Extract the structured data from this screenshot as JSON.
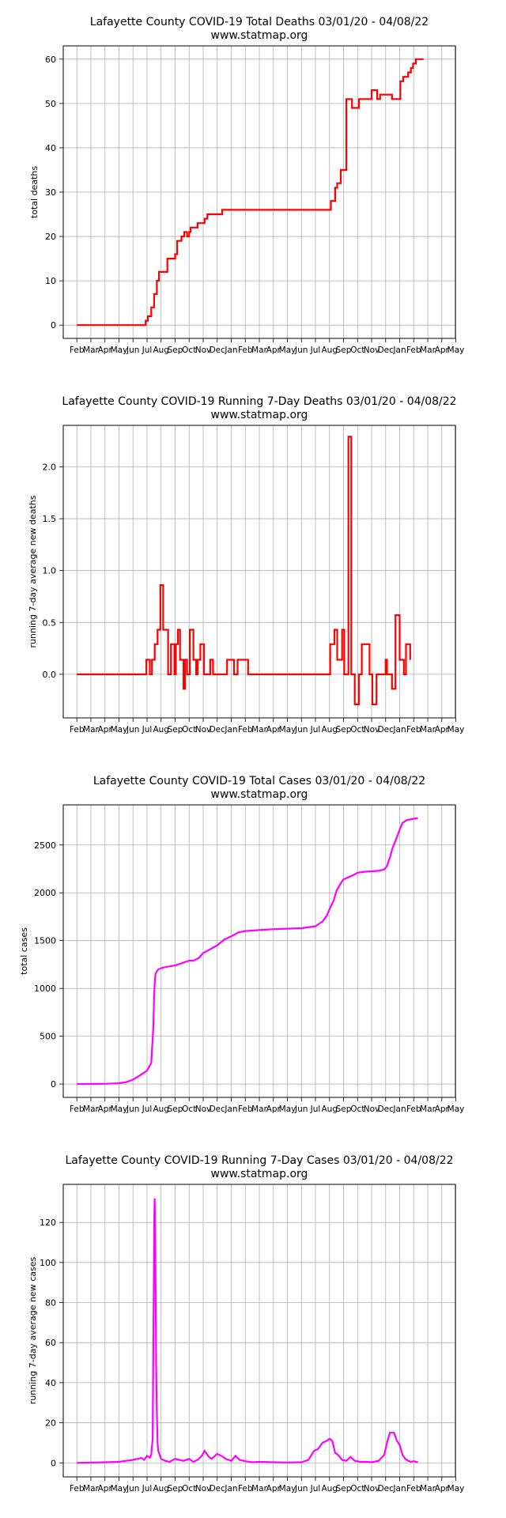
{
  "chart_data": [
    {
      "type": "line",
      "title": "Lafayette County COVID-19 Total Deaths 03/01/20 - 04/08/22",
      "subtitle": "www.statmap.org",
      "xlabel": "",
      "ylabel": "total deaths",
      "xlim": [
        -0.97,
        26.97
      ],
      "ylim": [
        -3,
        63
      ],
      "yticks": [
        0,
        10,
        20,
        30,
        40,
        50,
        60
      ],
      "xtick_labels": [
        "Feb",
        "Mar",
        "Apr",
        "May",
        "Jun",
        "Jul",
        "Aug",
        "Sep",
        "Oct",
        "Nov",
        "Dec",
        "Jan",
        "Feb",
        "Mar",
        "Apr",
        "May",
        "Jun",
        "Jul",
        "Aug",
        "Sep",
        "Oct",
        "Nov",
        "Dec",
        "Jan",
        "Feb",
        "Mar",
        "Apr",
        "May"
      ],
      "grid": true,
      "line_color": "#ff0000",
      "step": true,
      "series": [
        {
          "x": [
            0,
            4.9,
            5.05,
            5.3,
            5.5,
            5.7,
            5.85,
            6.1,
            6.45,
            6.8,
            7.0,
            7.15,
            7.35,
            7.45,
            7.65,
            7.85,
            8.0,
            8.1,
            8.45,
            8.6,
            9.1,
            9.3,
            9.5,
            10.05,
            10.35,
            11.3,
            11.5,
            12.1,
            12.3,
            13.0,
            13.1,
            18.1,
            18.4,
            18.55,
            18.7,
            18.8,
            19.2,
            19.6,
            20.1,
            20.5,
            21.0,
            21.4,
            21.6,
            22.3,
            22.45,
            23.05,
            23.25,
            23.6,
            23.8,
            23.95,
            24.15,
            24.35,
            24.5,
            24.7
          ],
          "y": [
            0,
            1,
            2,
            4,
            7,
            10,
            12,
            12,
            15,
            15,
            16,
            19,
            19,
            20,
            21,
            20,
            21,
            22,
            22,
            23,
            24,
            25,
            25,
            25,
            26,
            26,
            26,
            26,
            26,
            26,
            26,
            28,
            31,
            32,
            32,
            35,
            51,
            49,
            51,
            51,
            53,
            51,
            52,
            52,
            51,
            55,
            56,
            57,
            58,
            59,
            60,
            60,
            60,
            60
          ]
        }
      ]
    },
    {
      "type": "line",
      "title": "Lafayette County COVID-19 Running 7-Day Deaths 03/01/20 - 04/08/22",
      "subtitle": "www.statmap.org",
      "xlabel": "",
      "ylabel": "running 7-day average new deaths",
      "xlim": [
        -0.97,
        26.97
      ],
      "ylim": [
        -0.42,
        2.4
      ],
      "yticks": [
        0.0,
        0.5,
        1.0,
        1.5,
        2.0
      ],
      "ytick_labels": [
        "0.0",
        "0.5",
        "1.0",
        "1.5",
        "2.0"
      ],
      "xtick_labels": [
        "Feb",
        "Mar",
        "Apr",
        "May",
        "Jun",
        "Jul",
        "Aug",
        "Sep",
        "Oct",
        "Nov",
        "Dec",
        "Jan",
        "Feb",
        "Mar",
        "Apr",
        "May",
        "Jun",
        "Jul",
        "Aug",
        "Sep",
        "Oct",
        "Nov",
        "Dec",
        "Jan",
        "Feb",
        "Mar",
        "Apr",
        "May"
      ],
      "grid": true,
      "line_color": "#ff0000",
      "step": true,
      "series": [
        {
          "x": [
            0,
            4.95,
            5.2,
            5.35,
            5.55,
            5.75,
            5.95,
            6.15,
            6.5,
            6.7,
            6.95,
            7.05,
            7.2,
            7.35,
            7.6,
            7.7,
            7.85,
            8.05,
            8.3,
            8.5,
            8.6,
            8.8,
            9.05,
            9.5,
            9.7,
            10.45,
            10.7,
            11.2,
            11.45,
            12.2,
            12.45,
            18.05,
            18.35,
            18.55,
            18.9,
            19.05,
            19.35,
            19.55,
            19.8,
            20.1,
            20.3,
            20.6,
            20.85,
            21.05,
            21.35,
            22.0,
            22.1,
            22.3,
            22.45,
            22.7,
            23.0,
            23.3,
            23.45,
            23.75
          ],
          "y": [
            0,
            0.14,
            0.0,
            0.14,
            0.29,
            0.43,
            0.86,
            0.43,
            0.0,
            0.29,
            0.0,
            0.29,
            0.43,
            0.14,
            -0.14,
            0.14,
            0.0,
            0.43,
            0.14,
            0.0,
            0.14,
            0.29,
            0.0,
            0.14,
            0.0,
            0.0,
            0.14,
            0.0,
            0.14,
            0.0,
            0.0,
            0.29,
            0.43,
            0.14,
            0.43,
            0.0,
            2.29,
            0.0,
            -0.29,
            0.0,
            0.29,
            0.29,
            0.0,
            -0.29,
            0.0,
            0.14,
            0.0,
            0.0,
            -0.14,
            0.57,
            0.14,
            0.0,
            0.29,
            0.14
          ]
        }
      ]
    },
    {
      "type": "line",
      "title": "Lafayette County COVID-19 Total Cases 03/01/20 - 04/08/22",
      "subtitle": "www.statmap.org",
      "xlabel": "",
      "ylabel": "total cases",
      "xlim": [
        -0.97,
        26.97
      ],
      "ylim": [
        -140,
        2920
      ],
      "yticks": [
        0,
        500,
        1000,
        1500,
        2000,
        2500
      ],
      "xtick_labels": [
        "Feb",
        "Mar",
        "Apr",
        "May",
        "Jun",
        "Jul",
        "Aug",
        "Sep",
        "Oct",
        "Nov",
        "Dec",
        "Jan",
        "Feb",
        "Mar",
        "Apr",
        "May",
        "Jun",
        "Jul",
        "Aug",
        "Sep",
        "Oct",
        "Nov",
        "Dec",
        "Jan",
        "Feb",
        "Mar",
        "Apr",
        "May"
      ],
      "grid": true,
      "line_color": "#ff00ff",
      "step": false,
      "series": [
        {
          "x": [
            0,
            2,
            3,
            3.5,
            4,
            4.5,
            5,
            5.3,
            5.45,
            5.5,
            5.55,
            5.6,
            5.7,
            5.8,
            6.2,
            7.0,
            7.5,
            8.0,
            8.3,
            8.7,
            9.0,
            9.5,
            10.0,
            10.5,
            11.0,
            11.5,
            12.0,
            13.0,
            14.0,
            15.0,
            16.0,
            17.0,
            17.5,
            17.8,
            18.0,
            18.3,
            18.5,
            18.8,
            19.0,
            19.3,
            19.7,
            20.0,
            20.5,
            21.0,
            21.5,
            21.9,
            22.1,
            22.3,
            22.5,
            22.8,
            23.0,
            23.2,
            23.5,
            24.0,
            24.3
          ],
          "y": [
            0,
            2,
            8,
            20,
            45,
            90,
            140,
            220,
            600,
            920,
            1050,
            1150,
            1180,
            1200,
            1220,
            1240,
            1265,
            1290,
            1290,
            1320,
            1370,
            1410,
            1450,
            1510,
            1545,
            1585,
            1600,
            1610,
            1620,
            1625,
            1630,
            1650,
            1700,
            1760,
            1830,
            1920,
            2020,
            2100,
            2140,
            2160,
            2185,
            2210,
            2220,
            2225,
            2230,
            2245,
            2280,
            2370,
            2470,
            2580,
            2660,
            2730,
            2760,
            2775,
            2780
          ]
        }
      ]
    },
    {
      "type": "line",
      "title": "Lafayette County COVID-19 Running 7-Day Cases 03/01/20 - 04/08/22",
      "subtitle": "www.statmap.org",
      "xlabel": "",
      "ylabel": "running 7-day average new cases",
      "xlim": [
        -0.97,
        26.97
      ],
      "ylim": [
        -7,
        139
      ],
      "yticks": [
        0,
        20,
        40,
        60,
        80,
        100,
        120
      ],
      "xtick_labels": [
        "Feb",
        "Mar",
        "Apr",
        "May",
        "Jun",
        "Jul",
        "Aug",
        "Sep",
        "Oct",
        "Nov",
        "Dec",
        "Jan",
        "Feb",
        "Mar",
        "Apr",
        "May",
        "Jun",
        "Jul",
        "Aug",
        "Sep",
        "Oct",
        "Nov",
        "Dec",
        "Jan",
        "Feb",
        "Mar",
        "Apr",
        "May"
      ],
      "grid": true,
      "line_color": "#ff00ff",
      "step": false,
      "series": [
        {
          "x": [
            0,
            2,
            3,
            3.5,
            4,
            4.3,
            4.6,
            4.8,
            5.0,
            5.2,
            5.3,
            5.4,
            5.45,
            5.5,
            5.52,
            5.55,
            5.6,
            5.65,
            5.7,
            5.75,
            5.8,
            5.9,
            6.0,
            6.3,
            6.6,
            7.0,
            7.3,
            7.6,
            8.0,
            8.3,
            8.6,
            8.9,
            9.1,
            9.4,
            9.6,
            10.0,
            10.3,
            10.6,
            11.0,
            11.3,
            11.6,
            12.0,
            12.5,
            13.0,
            14.0,
            15.0,
            16.0,
            16.5,
            16.9,
            17.2,
            17.5,
            17.8,
            18.0,
            18.2,
            18.4,
            18.6,
            18.9,
            19.2,
            19.5,
            19.8,
            20.2,
            20.6,
            21.0,
            21.5,
            21.9,
            22.1,
            22.3,
            22.6,
            22.8,
            23.0,
            23.2,
            23.4,
            23.6,
            23.8,
            24.0,
            24.3
          ],
          "y": [
            0,
            0.3,
            0.5,
            1.0,
            1.5,
            2.0,
            2.5,
            1.5,
            3.5,
            2.5,
            4.0,
            12.0,
            60.0,
            110.0,
            125.0,
            132.0,
            100.0,
            50.0,
            25.0,
            10.0,
            6.0,
            4.0,
            2.0,
            1.0,
            0.5,
            2.0,
            1.5,
            1.0,
            2.0,
            0.5,
            1.5,
            3.5,
            6.0,
            3.0,
            2.0,
            4.5,
            3.5,
            2.0,
            1.0,
            3.5,
            1.5,
            0.8,
            0.3,
            0.5,
            0.3,
            0.2,
            0.3,
            1.5,
            6.0,
            7.0,
            10.0,
            11.0,
            12.0,
            11.0,
            5.0,
            4.0,
            1.5,
            1.0,
            3.0,
            1.0,
            0.5,
            0.5,
            0.3,
            1.0,
            4.0,
            10.0,
            15.0,
            15.0,
            11.0,
            9.0,
            4.0,
            2.0,
            1.0,
            0.5,
            0.8,
            0.3
          ]
        }
      ]
    }
  ]
}
